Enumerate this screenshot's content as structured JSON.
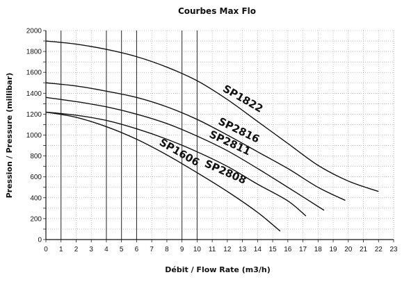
{
  "chart_data": {
    "type": "line",
    "title": "Courbes Max Flo",
    "xlabel": "Débit / Flow Rate (m3/h)",
    "ylabel": "Pression / Pressure (millibar)",
    "xlim": [
      0,
      23
    ],
    "ylim": [
      0,
      2000
    ],
    "x_ticks": [
      "0",
      "1",
      "2",
      "3",
      "4",
      "5",
      "6",
      "7",
      "8",
      "9",
      "10",
      "11",
      "12",
      "13",
      "14",
      "15",
      "16",
      "17",
      "18",
      "19",
      "20",
      "21",
      "22",
      "23"
    ],
    "y_ticks": [
      "0",
      "200",
      "400",
      "600",
      "800",
      "1000",
      "1200",
      "1400",
      "1600",
      "1800",
      "2000"
    ],
    "grid": true,
    "series": [
      {
        "name": "SP1822",
        "points": [
          [
            0,
            1900
          ],
          [
            2,
            1870
          ],
          [
            4,
            1820
          ],
          [
            6,
            1750
          ],
          [
            8,
            1650
          ],
          [
            10,
            1520
          ],
          [
            12,
            1340
          ],
          [
            14,
            1130
          ],
          [
            16,
            920
          ],
          [
            18,
            710
          ],
          [
            20,
            560
          ],
          [
            22,
            460
          ]
        ]
      },
      {
        "name": "SP2816",
        "points": [
          [
            0,
            1500
          ],
          [
            2,
            1470
          ],
          [
            4,
            1420
          ],
          [
            6,
            1360
          ],
          [
            8,
            1270
          ],
          [
            10,
            1150
          ],
          [
            12,
            1000
          ],
          [
            14,
            840
          ],
          [
            16,
            680
          ],
          [
            18,
            500
          ],
          [
            19.8,
            375
          ]
        ]
      },
      {
        "name": "SP2811",
        "points": [
          [
            0,
            1360
          ],
          [
            2,
            1320
          ],
          [
            4,
            1270
          ],
          [
            6,
            1200
          ],
          [
            8,
            1110
          ],
          [
            10,
            990
          ],
          [
            12,
            850
          ],
          [
            14,
            680
          ],
          [
            16,
            500
          ],
          [
            18.4,
            280
          ]
        ]
      },
      {
        "name": "SP2808",
        "points": [
          [
            0,
            1220
          ],
          [
            2,
            1190
          ],
          [
            4,
            1140
          ],
          [
            6,
            1060
          ],
          [
            8,
            960
          ],
          [
            10,
            840
          ],
          [
            12,
            700
          ],
          [
            14,
            530
          ],
          [
            16,
            370
          ],
          [
            17.2,
            225
          ]
        ]
      },
      {
        "name": "SP1606",
        "points": [
          [
            0,
            1220
          ],
          [
            2,
            1170
          ],
          [
            4,
            1080
          ],
          [
            6,
            960
          ],
          [
            8,
            810
          ],
          [
            10,
            640
          ],
          [
            12,
            460
          ],
          [
            14,
            260
          ],
          [
            15.5,
            80
          ]
        ]
      }
    ]
  }
}
